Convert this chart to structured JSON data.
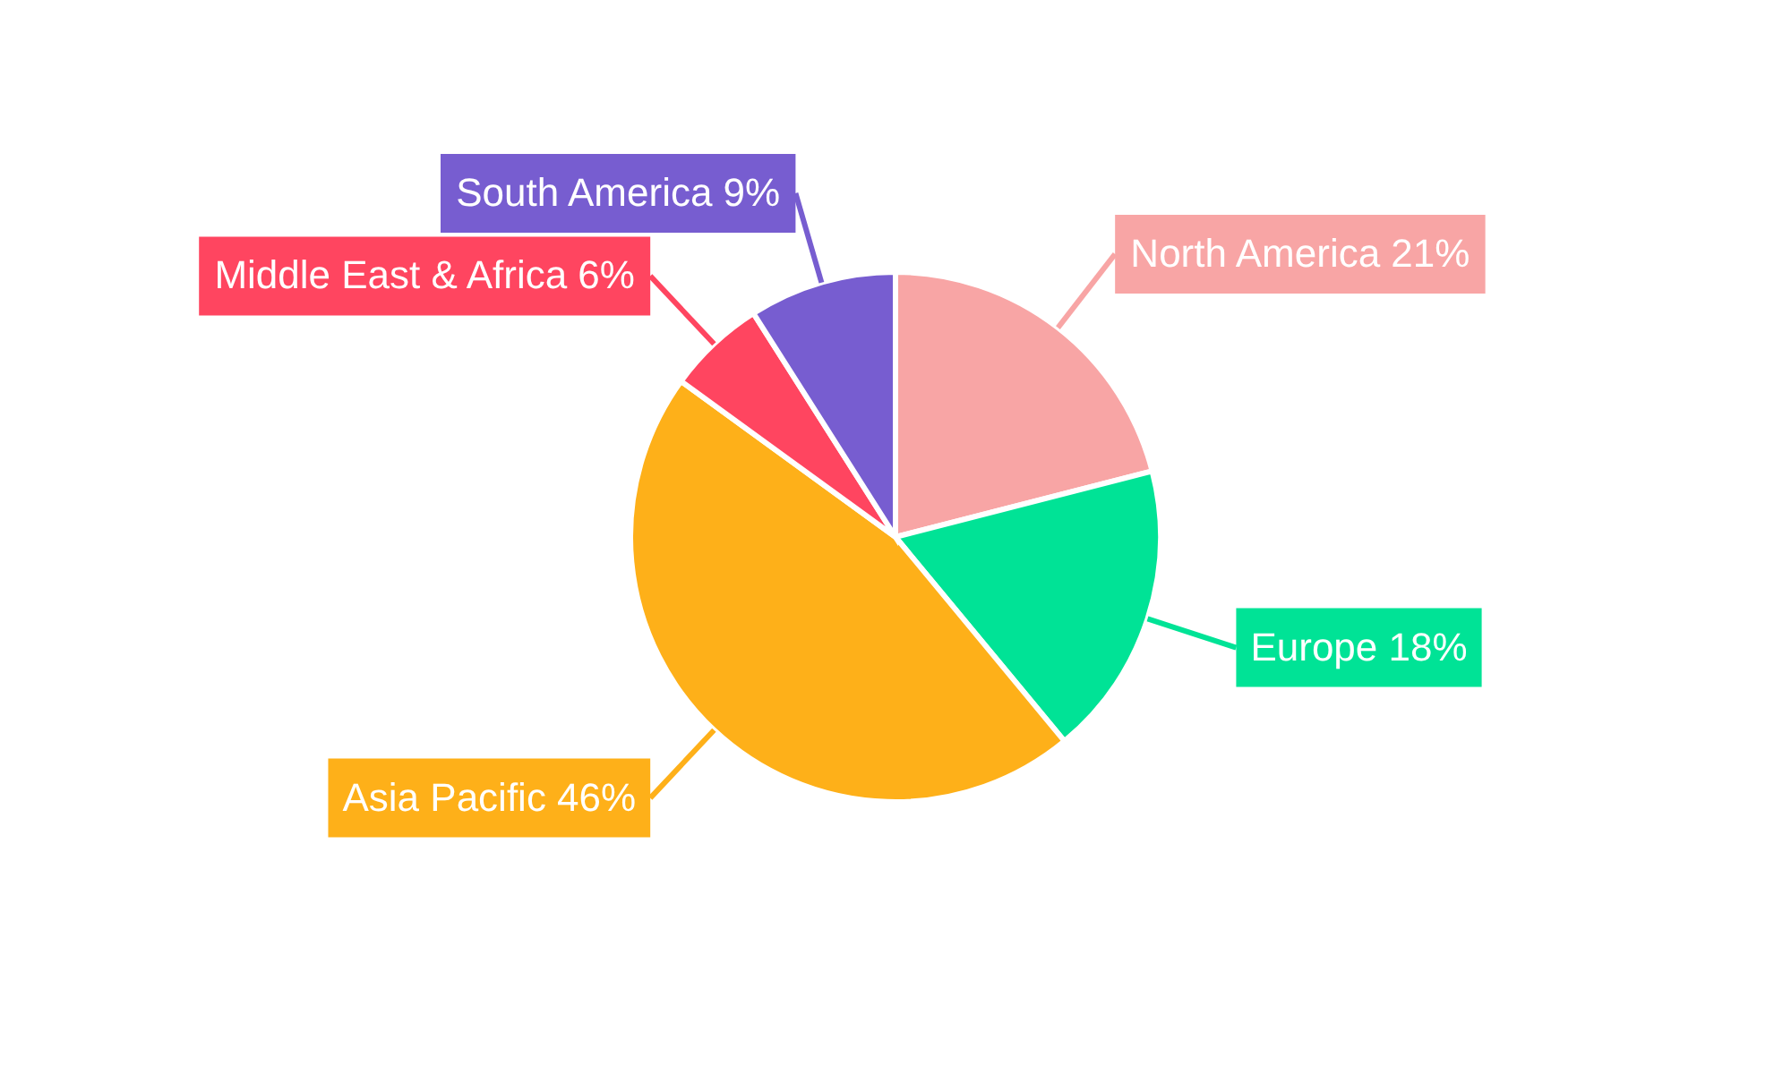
{
  "chart_data": {
    "type": "pie",
    "categories": [
      "North America",
      "Europe",
      "Asia Pacific",
      "Middle East & Africa",
      "South America"
    ],
    "values": [
      21,
      18,
      46,
      6,
      9
    ],
    "colors": [
      "#f8a5a5",
      "#00e396",
      "#feb019",
      "#ff4560",
      "#775dd0"
    ],
    "value_labels": [
      "21%",
      "18%",
      "46%",
      "6%",
      "9%"
    ]
  }
}
